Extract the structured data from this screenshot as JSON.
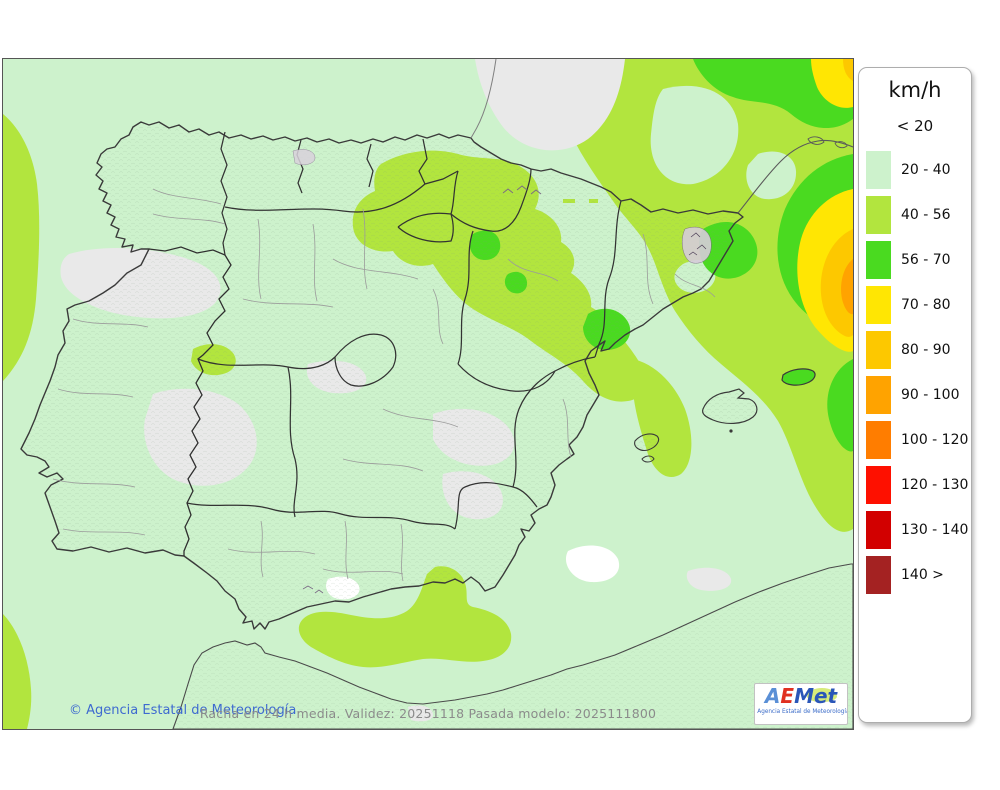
{
  "legend": {
    "title": "km/h",
    "first_label": "< 20",
    "items": [
      {
        "label": "20 - 40",
        "color": "#cdf2cc"
      },
      {
        "label": "40 - 56",
        "color": "#b2e53e"
      },
      {
        "label": "56 - 70",
        "color": "#4ada20"
      },
      {
        "label": "70 - 80",
        "color": "#ffe603"
      },
      {
        "label": "80 - 90",
        "color": "#fdc800"
      },
      {
        "label": "90 - 100",
        "color": "#ffa300"
      },
      {
        "label": "100 - 120",
        "color": "#ff7d00"
      },
      {
        "label": "120 - 130",
        "color": "#fe1000"
      },
      {
        "label": "130 - 140",
        "color": "#d20000"
      },
      {
        "label": "140 >",
        "color": "#a42222"
      }
    ]
  },
  "footer": {
    "copyright": "© Agencia Estatal de Meteorología",
    "info": "Racha en 24 h media. Validez: 20251118 Pasada modelo: 2025111800"
  },
  "logo": {
    "letter_a": "A",
    "letter_e": "E",
    "letters_met": "Met",
    "subtitle": "Agencia Estatal de Meteorología"
  },
  "map": {
    "calm_color": "#e9e9e9",
    "calm_white": "#ffffff",
    "coast_border_color": "#3a3a3a",
    "region_border_color": "#333333",
    "province_border_color": "#9b9b9b",
    "france_coast_color": "#808080"
  }
}
